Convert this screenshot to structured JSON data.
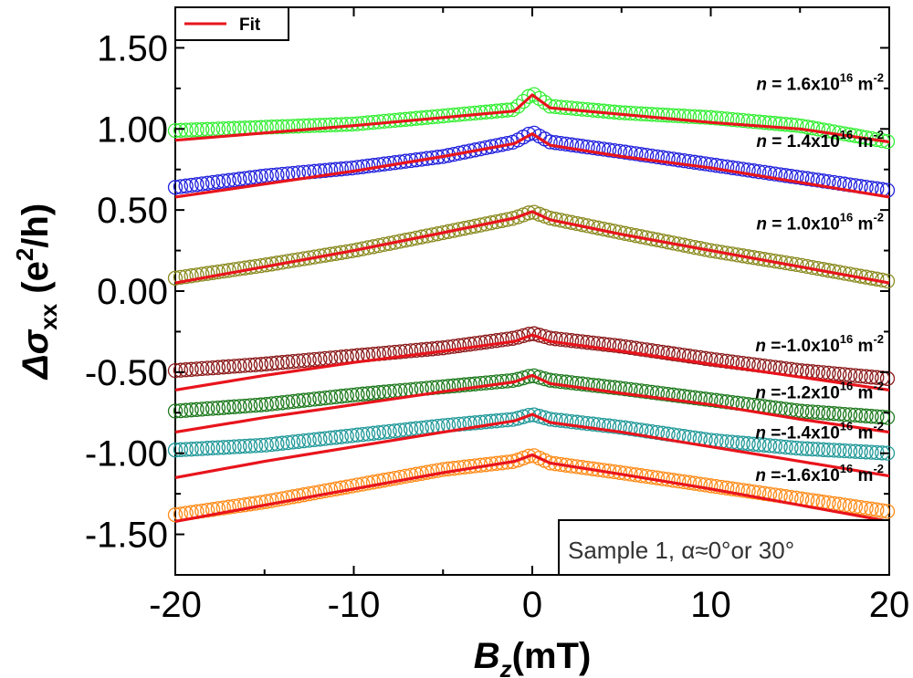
{
  "chart_data": {
    "type": "scatter",
    "title": "",
    "xlabel": {
      "main": "B",
      "sub": "z",
      "rest": "(mT)"
    },
    "ylabel": {
      "main": "Δσ",
      "sub": "xx",
      "rest1": " (e",
      "sup": "2",
      "rest2": "/h)"
    },
    "xlim": [
      -20,
      20
    ],
    "ylim": [
      -1.75,
      1.75
    ],
    "x_ticks": [
      "-20",
      "-10",
      "0",
      "10",
      "20"
    ],
    "y_ticks": [
      "1.50",
      "1.00",
      "0.50",
      "0.00",
      "-0.50",
      "-1.00",
      "-1.50"
    ],
    "legend": {
      "label": "Fit",
      "color": "#e8141c",
      "placement": "top-left"
    },
    "annotation": "Sample 1, α≈0°or 30°",
    "fit_color": "#e8141c",
    "series": [
      {
        "name": "n = 1.6x10^16 m^-2",
        "label_pre": "n",
        "label_mid": " = 1.6x10",
        "label_exp": "16",
        "label_unit": " m",
        "label_unit_exp": "-2",
        "color": "#33ee33",
        "label_y": 1.24,
        "points": [
          [
            -20,
            0.99
          ],
          [
            -15,
            1.01
          ],
          [
            -10,
            1.03
          ],
          [
            -5,
            1.08
          ],
          [
            -1,
            1.12
          ],
          [
            0,
            1.22
          ],
          [
            1,
            1.14
          ],
          [
            5,
            1.1
          ],
          [
            10,
            1.07
          ],
          [
            15,
            1.02
          ],
          [
            20,
            0.92
          ]
        ],
        "fit": [
          [
            -20,
            0.93
          ],
          [
            -10,
            1.02
          ],
          [
            -5,
            1.07
          ],
          [
            -1,
            1.11
          ],
          [
            0,
            1.21
          ],
          [
            1,
            1.13
          ],
          [
            5,
            1.09
          ],
          [
            10,
            1.04
          ],
          [
            15,
            1.0
          ],
          [
            20,
            0.92
          ]
        ]
      },
      {
        "name": "n = 1.4x10^16 m^-2",
        "label_pre": "n",
        "label_mid": " = 1.4x10",
        "label_exp": "16",
        "label_unit": " m",
        "label_unit_exp": "-2",
        "color": "#2222dd",
        "label_y": 0.89,
        "points": [
          [
            -20,
            0.64
          ],
          [
            -15,
            0.71
          ],
          [
            -10,
            0.76
          ],
          [
            -5,
            0.83
          ],
          [
            -1,
            0.92
          ],
          [
            0,
            0.98
          ],
          [
            1,
            0.92
          ],
          [
            5,
            0.86
          ],
          [
            10,
            0.78
          ],
          [
            15,
            0.7
          ],
          [
            20,
            0.62
          ]
        ],
        "fit": [
          [
            -20,
            0.58
          ],
          [
            -10,
            0.74
          ],
          [
            -5,
            0.83
          ],
          [
            -1,
            0.91
          ],
          [
            0,
            0.97
          ],
          [
            1,
            0.9
          ],
          [
            5,
            0.83
          ],
          [
            10,
            0.76
          ],
          [
            15,
            0.67
          ],
          [
            20,
            0.58
          ]
        ]
      },
      {
        "name": "n = 1.0x10^16 m^-2",
        "label_pre": "n",
        "label_mid": " = 1.0x10",
        "label_exp": "16",
        "label_unit": " m",
        "label_unit_exp": "-2",
        "color": "#8b8b22",
        "label_y": 0.38,
        "points": [
          [
            -20,
            0.08
          ],
          [
            -15,
            0.16
          ],
          [
            -10,
            0.25
          ],
          [
            -5,
            0.36
          ],
          [
            -1,
            0.45
          ],
          [
            0,
            0.49
          ],
          [
            1,
            0.45
          ],
          [
            5,
            0.36
          ],
          [
            10,
            0.25
          ],
          [
            15,
            0.16
          ],
          [
            20,
            0.06
          ]
        ],
        "fit": [
          [
            -20,
            0.05
          ],
          [
            -15,
            0.15
          ],
          [
            -10,
            0.25
          ],
          [
            -5,
            0.36
          ],
          [
            -1,
            0.45
          ],
          [
            0,
            0.49
          ],
          [
            1,
            0.44
          ],
          [
            5,
            0.35
          ],
          [
            10,
            0.25
          ],
          [
            15,
            0.15
          ],
          [
            20,
            0.05
          ]
        ]
      },
      {
        "name": "n =-1.0x10^16 m^-2",
        "label_pre": "n",
        "label_mid": " =-1.0x10",
        "label_exp": "16",
        "label_unit": " m",
        "label_unit_exp": "-2",
        "color": "#8b1a1a",
        "label_y": -0.37,
        "points": [
          [
            -20,
            -0.49
          ],
          [
            -15,
            -0.45
          ],
          [
            -10,
            -0.4
          ],
          [
            -5,
            -0.35
          ],
          [
            -1,
            -0.29
          ],
          [
            0,
            -0.26
          ],
          [
            1,
            -0.29
          ],
          [
            5,
            -0.34
          ],
          [
            10,
            -0.42
          ],
          [
            15,
            -0.49
          ],
          [
            20,
            -0.54
          ]
        ],
        "fit": [
          [
            -20,
            -0.61
          ],
          [
            -15,
            -0.52
          ],
          [
            -10,
            -0.44
          ],
          [
            -5,
            -0.37
          ],
          [
            -1,
            -0.31
          ],
          [
            0,
            -0.27
          ],
          [
            1,
            -0.31
          ],
          [
            5,
            -0.37
          ],
          [
            10,
            -0.45
          ],
          [
            15,
            -0.53
          ],
          [
            20,
            -0.61
          ]
        ]
      },
      {
        "name": "n =-1.2x10^16 m^-2",
        "label_pre": "n",
        "label_mid": " =-1.2x10",
        "label_exp": "16",
        "label_unit": " m",
        "label_unit_exp": "-2",
        "color": "#1e7a1e",
        "label_y": -0.66,
        "points": [
          [
            -20,
            -0.74
          ],
          [
            -15,
            -0.7
          ],
          [
            -10,
            -0.64
          ],
          [
            -5,
            -0.59
          ],
          [
            -1,
            -0.55
          ],
          [
            0,
            -0.52
          ],
          [
            1,
            -0.55
          ],
          [
            5,
            -0.6
          ],
          [
            10,
            -0.67
          ],
          [
            15,
            -0.74
          ],
          [
            20,
            -0.78
          ]
        ],
        "fit": [
          [
            -20,
            -0.87
          ],
          [
            -15,
            -0.78
          ],
          [
            -10,
            -0.7
          ],
          [
            -5,
            -0.62
          ],
          [
            -1,
            -0.56
          ],
          [
            0,
            -0.52
          ],
          [
            1,
            -0.57
          ],
          [
            5,
            -0.63
          ],
          [
            10,
            -0.7
          ],
          [
            15,
            -0.79
          ],
          [
            20,
            -0.87
          ]
        ]
      },
      {
        "name": "n =-1.4x10^16 m^-2",
        "label_pre": "n",
        "label_mid": " =-1.4x10",
        "label_exp": "16",
        "label_unit": " m",
        "label_unit_exp": "-2",
        "color": "#229999",
        "label_y": -0.91,
        "points": [
          [
            -20,
            -0.98
          ],
          [
            -15,
            -0.95
          ],
          [
            -10,
            -0.89
          ],
          [
            -5,
            -0.83
          ],
          [
            -1,
            -0.79
          ],
          [
            0,
            -0.76
          ],
          [
            1,
            -0.79
          ],
          [
            5,
            -0.84
          ],
          [
            10,
            -0.92
          ],
          [
            15,
            -0.97
          ],
          [
            20,
            -1.0
          ]
        ],
        "fit": [
          [
            -20,
            -1.15
          ],
          [
            -15,
            -1.05
          ],
          [
            -10,
            -0.96
          ],
          [
            -5,
            -0.87
          ],
          [
            -1,
            -0.8
          ],
          [
            0,
            -0.76
          ],
          [
            1,
            -0.81
          ],
          [
            5,
            -0.87
          ],
          [
            10,
            -0.96
          ],
          [
            15,
            -1.05
          ],
          [
            20,
            -1.14
          ]
        ]
      },
      {
        "name": "n =-1.6x10^16 m^-2",
        "label_pre": "n",
        "label_mid": " =-1.6x10",
        "label_exp": "16",
        "label_unit": " m",
        "label_unit_exp": "-2",
        "color": "#ff8c1a",
        "label_y": -1.17,
        "points": [
          [
            -20,
            -1.38
          ],
          [
            -15,
            -1.3
          ],
          [
            -10,
            -1.2
          ],
          [
            -5,
            -1.1
          ],
          [
            -1,
            -1.05
          ],
          [
            0,
            -1.01
          ],
          [
            1,
            -1.06
          ],
          [
            5,
            -1.12
          ],
          [
            10,
            -1.2
          ],
          [
            15,
            -1.28
          ],
          [
            20,
            -1.36
          ]
        ],
        "fit": [
          [
            -20,
            -1.42
          ],
          [
            -15,
            -1.32
          ],
          [
            -10,
            -1.22
          ],
          [
            -5,
            -1.12
          ],
          [
            -1,
            -1.05
          ],
          [
            0,
            -1.01
          ],
          [
            1,
            -1.06
          ],
          [
            5,
            -1.13
          ],
          [
            10,
            -1.22
          ],
          [
            15,
            -1.32
          ],
          [
            20,
            -1.42
          ]
        ]
      }
    ]
  }
}
